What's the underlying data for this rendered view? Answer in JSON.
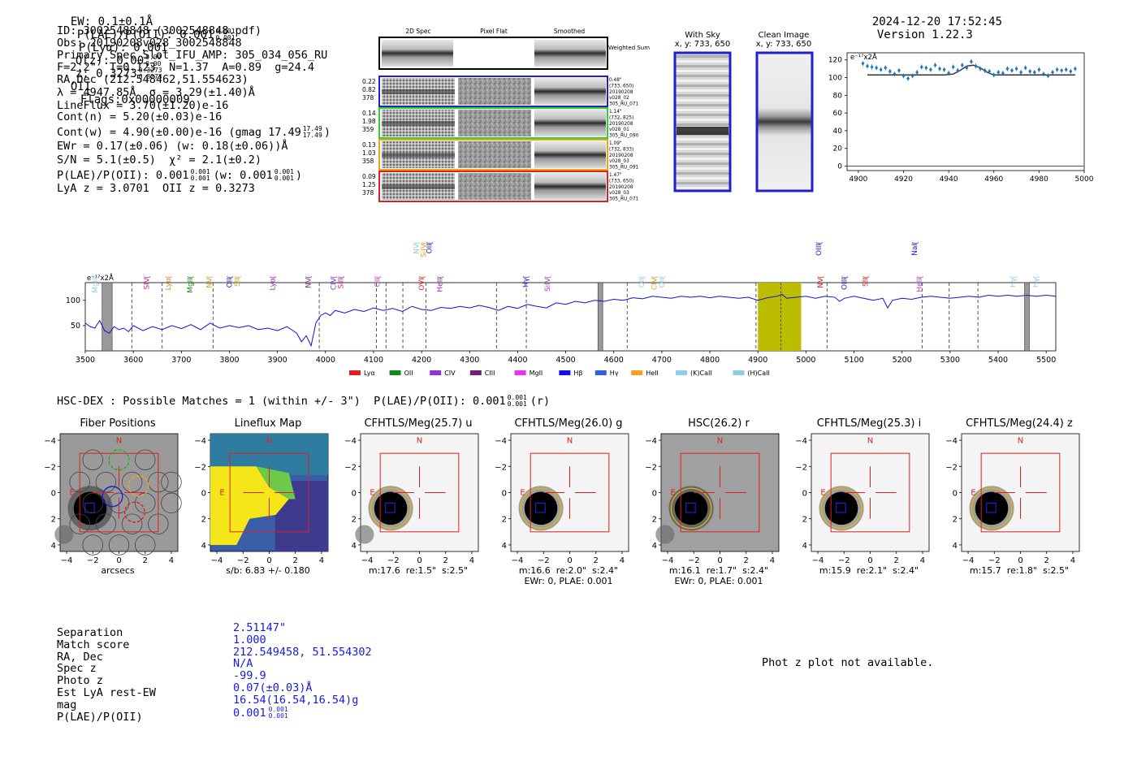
{
  "header": {
    "ew": "EW: 0.1±0.1Å",
    "plae_main": "P(LAE)/P(OII): 0.001",
    "plae_sup": "0.001",
    "plae_sub": "0.001",
    "plya": "P(Lyα): 0.001",
    "qz_main": "Q(z): 0.00",
    "qz_sup": "0.00",
    "qz_sub": "0.00",
    "z_main": "z: 0.3273",
    "z_sup": "0.3273",
    "z_sub": "0.3273",
    "z_line": "OII",
    "flags": "Flags:0x00000009",
    "datetime": "2024-12-20 17:52:45",
    "version": "Version 1.22.3"
  },
  "info": {
    "id": "ID: 3002548848 (3002548848.pdf)",
    "obs": "Obs: 20190208v028_3002548848",
    "primary": "Primary Spec_Slot_IFU_AMP: 305_034_056_RU",
    "fit": "F=2.2\"  T=0.123  N=1.37  A=0.89  g=24.4",
    "radec": "RA,Dec (212.548462,51.554623)",
    "lambda": "λ = 4947.85Å  σ = 3.29(±1.40)Å",
    "lineflux": "LineFlux = 3.70(±1.20)e-16",
    "contn": "Cont(n) = 5.20(±0.03)e-16",
    "contw_main": "Cont(w) = 4.90(±0.00)e-16 (gmag 17.49",
    "contw_sup": "17.49",
    "contw_sub": "17.49",
    "contw_close": ")",
    "ewr": "EWr = 0.17(±0.06) (w: 0.18(±0.06))Å",
    "sn": "S/N = 5.1(±0.5)  χ² = 2.1(±0.2)",
    "plae_main": "P(LAE)/P(OII): 0.001",
    "plae_sup": "0.001",
    "plae_sub": "0.001",
    "plae_w_main": "(w: 0.001",
    "plae_w_sup": "0.001",
    "plae_w_sub": "0.001",
    "plae_w_close": ")",
    "lya_oii": "LyA z = 3.0701  OII z = 0.3273"
  },
  "cutouts": {
    "col_titles": [
      "2D Spec",
      "Pixel Flat",
      "Smoothed"
    ],
    "weighted_sum_label": "Weighted Sum",
    "fibers": [
      {
        "left": [
          "0.22",
          "0.82",
          "378"
        ],
        "right": [
          "0.48\"",
          "(733, 650)",
          "20190208",
          "v028_02",
          "305_RU_071"
        ],
        "color": "#1f1fd0"
      },
      {
        "left": [
          "0.14",
          "1.98",
          "359"
        ],
        "right": [
          "1.14\"",
          "(732, 825)",
          "20190208",
          "v028_01",
          "305_RU_090"
        ],
        "color": "#2ad42a"
      },
      {
        "left": [
          "0.13",
          "1.03",
          "358"
        ],
        "right": [
          "1.09\"",
          "(732, 833)",
          "20190208",
          "v028_03",
          "305_RU_091"
        ],
        "color": "#f5a21b"
      },
      {
        "left": [
          "0.09",
          "1.25",
          "378"
        ],
        "right": [
          "1.47\"",
          "(733, 650)",
          "20190208",
          "v028_03",
          "305_RU_071"
        ],
        "color": "#e02020"
      }
    ],
    "with_sky_title": "With Sky",
    "with_sky_xy": "x, y: 733, 650",
    "clean_title": "Clean Image",
    "clean_xy": "x, y: 733, 650"
  },
  "zoom_chart": {
    "type": "line",
    "yunit": "e⁻¹⁷x2Å",
    "xlim": [
      4895,
      5000
    ],
    "ylim": [
      -5,
      128
    ],
    "xticks": [
      4900,
      4920,
      4940,
      4960,
      4980,
      5000
    ],
    "yticks": [
      0,
      20,
      40,
      60,
      80,
      100,
      120
    ],
    "data_x": [
      4902,
      4904,
      4906,
      4908,
      4910,
      4912,
      4914,
      4916,
      4918,
      4920,
      4922,
      4924,
      4926,
      4928,
      4930,
      4932,
      4934,
      4936,
      4938,
      4940,
      4942,
      4944,
      4946,
      4948,
      4950,
      4952,
      4954,
      4956,
      4958,
      4960,
      4962,
      4964,
      4966,
      4968,
      4970,
      4972,
      4974,
      4976,
      4978,
      4980,
      4982,
      4984,
      4986,
      4988,
      4990,
      4992,
      4994,
      4996
    ],
    "data_y": [
      116,
      113,
      112,
      111,
      109,
      111,
      107,
      104,
      108,
      102,
      99,
      102,
      106,
      112,
      111,
      109,
      114,
      110,
      109,
      105,
      112,
      108,
      114,
      111,
      118,
      113,
      110,
      108,
      107,
      103,
      106,
      105,
      110,
      108,
      110,
      106,
      111,
      107,
      106,
      109,
      104,
      102,
      106,
      109,
      108,
      109,
      107,
      110
    ],
    "model_x": [
      4904,
      4920,
      4930,
      4938,
      4942,
      4945,
      4948,
      4951,
      4954,
      4957,
      4960,
      4970,
      4996
    ],
    "model_y": [
      103,
      103,
      103,
      103,
      104,
      108,
      113,
      114,
      111,
      106,
      103,
      103,
      103
    ]
  },
  "spectrum": {
    "type": "line",
    "yunit": "e⁻¹⁷x2Å",
    "xlim": [
      3500,
      5520
    ],
    "ylim": [
      0,
      135
    ],
    "xticks": [
      3500,
      3600,
      3700,
      3800,
      3900,
      4000,
      4100,
      4200,
      4300,
      4400,
      4500,
      4600,
      4700,
      4800,
      4900,
      5000,
      5100,
      5200,
      5300,
      5400,
      5500
    ],
    "yticks": [
      50,
      100
    ],
    "highlight": [
      4900,
      4990
    ],
    "highlight_center": 4948,
    "sky_bands": [
      [
        3535,
        3556
      ],
      [
        4567,
        4577
      ],
      [
        5455,
        5465
      ]
    ],
    "dashed_lines": [
      3597,
      3660,
      3766,
      3987,
      4106,
      4126,
      4161,
      4209,
      4356,
      4418,
      4628,
      4896,
      5044,
      5242,
      5298,
      5358
    ],
    "line_labels": [
      {
        "x": 3520,
        "label": "MgII",
        "color": "#8ecde8",
        "row": 1
      },
      {
        "x": 3628,
        "label": "SIV",
        "color": "#c22a8a",
        "row": 1
      },
      {
        "x": 3672,
        "label": "Lyα",
        "color": "#e08b20",
        "row": 1
      },
      {
        "x": 3718,
        "label": "MgII",
        "color": "#168a16",
        "row": 1
      },
      {
        "x": 3758,
        "label": "NV",
        "color": "#e0a020",
        "row": 1
      },
      {
        "x": 3800,
        "label": "OII",
        "color": "#1f1fd0",
        "row": 1
      },
      {
        "x": 3816,
        "label": "SII",
        "color": "#e0a020",
        "row": 1
      },
      {
        "x": 3890,
        "label": "Lyα",
        "color": "#a028c8",
        "row": 1
      },
      {
        "x": 3964,
        "label": "NV",
        "color": "#8a2aa0",
        "row": 1
      },
      {
        "x": 4016,
        "label": "CIV",
        "color": "#9030c0",
        "row": 1
      },
      {
        "x": 4032,
        "label": "SiII",
        "color": "#c22a8a",
        "row": 1
      },
      {
        "x": 4108,
        "label": "CII",
        "color": "#e038c8",
        "row": 1
      },
      {
        "x": 4200,
        "label": "OVI",
        "color": "#e02020",
        "row": 1
      },
      {
        "x": 4238,
        "label": "HeII",
        "color": "#8a2aa0",
        "row": 1
      },
      {
        "x": 4416,
        "label": "Hγ",
        "color": "#1f1fd0",
        "row": 1
      },
      {
        "x": 4462,
        "label": "SiIV",
        "color": "#b040d0",
        "row": 1
      },
      {
        "x": 4658,
        "label": "OII",
        "color": "#8ecde8",
        "row": 1
      },
      {
        "x": 4684,
        "label": "CIV",
        "color": "#e0a020",
        "row": 1
      },
      {
        "x": 4700,
        "label": "OII",
        "color": "#8ecde8",
        "row": 1
      },
      {
        "x": 5030,
        "label": "NV",
        "color": "#e02020",
        "row": 1
      },
      {
        "x": 5080,
        "label": "OIII",
        "color": "#1f1fd0",
        "row": 1
      },
      {
        "x": 5124,
        "label": "SII",
        "color": "#e02020",
        "row": 1
      },
      {
        "x": 5236,
        "label": "HeII",
        "color": "#b040d0",
        "row": 1
      },
      {
        "x": 5430,
        "label": "Hγ",
        "color": "#8ecde8",
        "row": 1
      },
      {
        "x": 5478,
        "label": "Hγ",
        "color": "#8ecde8",
        "row": 1
      },
      {
        "x": 4189,
        "label": "NV",
        "color": "#8ecde8",
        "row": 2
      },
      {
        "x": 4204,
        "label": "SiIV",
        "color": "#e0a020",
        "row": 2
      },
      {
        "x": 4216,
        "label": "OII",
        "color": "#1f1fd0",
        "row": 2
      },
      {
        "x": 5026,
        "label": "OIII",
        "color": "#1f1fd0",
        "row": 2
      },
      {
        "x": 5226,
        "label": "NaI",
        "color": "#1f1fd0",
        "row": 2
      }
    ],
    "legend": [
      {
        "label": "Lyα",
        "color": "#e02020"
      },
      {
        "label": "OII",
        "color": "#168a16"
      },
      {
        "label": "CIV",
        "color": "#9030e0"
      },
      {
        "label": "CIII",
        "color": "#7a1a7a"
      },
      {
        "label": "MgII",
        "color": "#f030f0"
      },
      {
        "label": "Hβ",
        "color": "#1010e0"
      },
      {
        "label": "Hγ",
        "color": "#3060e0"
      },
      {
        "label": "HeII",
        "color": "#f5a020"
      },
      {
        "label": "(K)CaII",
        "color": "#8ecde8"
      },
      {
        "label": "(H)CaII",
        "color": "#8ecde8"
      }
    ],
    "keypoints": [
      [
        3500,
        55
      ],
      [
        3510,
        48
      ],
      [
        3520,
        45
      ],
      [
        3530,
        60
      ],
      [
        3540,
        40
      ],
      [
        3550,
        35
      ],
      [
        3560,
        48
      ],
      [
        3570,
        42
      ],
      [
        3580,
        45
      ],
      [
        3590,
        38
      ],
      [
        3600,
        50
      ],
      [
        3620,
        40
      ],
      [
        3640,
        48
      ],
      [
        3660,
        42
      ],
      [
        3680,
        50
      ],
      [
        3700,
        44
      ],
      [
        3720,
        52
      ],
      [
        3740,
        42
      ],
      [
        3760,
        55
      ],
      [
        3780,
        45
      ],
      [
        3800,
        50
      ],
      [
        3820,
        46
      ],
      [
        3840,
        50
      ],
      [
        3860,
        42
      ],
      [
        3880,
        45
      ],
      [
        3900,
        40
      ],
      [
        3920,
        48
      ],
      [
        3940,
        35
      ],
      [
        3950,
        18
      ],
      [
        3960,
        30
      ],
      [
        3970,
        10
      ],
      [
        3980,
        55
      ],
      [
        3990,
        70
      ],
      [
        4000,
        75
      ],
      [
        4010,
        70
      ],
      [
        4020,
        80
      ],
      [
        4040,
        75
      ],
      [
        4060,
        82
      ],
      [
        4080,
        78
      ],
      [
        4100,
        85
      ],
      [
        4120,
        80
      ],
      [
        4140,
        84
      ],
      [
        4160,
        78
      ],
      [
        4180,
        88
      ],
      [
        4200,
        82
      ],
      [
        4220,
        80
      ],
      [
        4240,
        86
      ],
      [
        4260,
        84
      ],
      [
        4280,
        88
      ],
      [
        4300,
        85
      ],
      [
        4320,
        90
      ],
      [
        4340,
        86
      ],
      [
        4360,
        80
      ],
      [
        4380,
        88
      ],
      [
        4400,
        84
      ],
      [
        4420,
        92
      ],
      [
        4440,
        88
      ],
      [
        4460,
        85
      ],
      [
        4480,
        95
      ],
      [
        4500,
        92
      ],
      [
        4520,
        98
      ],
      [
        4540,
        95
      ],
      [
        4560,
        100
      ],
      [
        4580,
        98
      ],
      [
        4600,
        102
      ],
      [
        4620,
        100
      ],
      [
        4640,
        105
      ],
      [
        4660,
        103
      ],
      [
        4680,
        108
      ],
      [
        4700,
        106
      ],
      [
        4720,
        104
      ],
      [
        4740,
        108
      ],
      [
        4760,
        106
      ],
      [
        4780,
        108
      ],
      [
        4800,
        105
      ],
      [
        4820,
        108
      ],
      [
        4840,
        106
      ],
      [
        4860,
        104
      ],
      [
        4880,
        106
      ],
      [
        4900,
        100
      ],
      [
        4920,
        105
      ],
      [
        4940,
        108
      ],
      [
        4950,
        112
      ],
      [
        4960,
        104
      ],
      [
        4980,
        106
      ],
      [
        5000,
        108
      ],
      [
        5020,
        104
      ],
      [
        5040,
        108
      ],
      [
        5060,
        106
      ],
      [
        5070,
        98
      ],
      [
        5080,
        104
      ],
      [
        5100,
        108
      ],
      [
        5120,
        104
      ],
      [
        5140,
        100
      ],
      [
        5160,
        104
      ],
      [
        5170,
        85
      ],
      [
        5180,
        100
      ],
      [
        5200,
        104
      ],
      [
        5220,
        102
      ],
      [
        5240,
        106
      ],
      [
        5260,
        108
      ],
      [
        5280,
        106
      ],
      [
        5300,
        104
      ],
      [
        5320,
        106
      ],
      [
        5340,
        108
      ],
      [
        5360,
        106
      ],
      [
        5380,
        110
      ],
      [
        5400,
        108
      ],
      [
        5420,
        110
      ],
      [
        5440,
        108
      ],
      [
        5460,
        110
      ],
      [
        5480,
        108
      ],
      [
        5500,
        110
      ],
      [
        5520,
        108
      ]
    ]
  },
  "dex_match": {
    "title_main": "HSC-DEX : Possible Matches = 1 (within +/- 3\")  P(LAE)/P(OII): 0.001",
    "title_sup": "0.001",
    "title_sub": "0.001",
    "title_band": "(r)"
  },
  "stamps": [
    {
      "title": "Fiber Positions",
      "caption1": "arcsecs",
      "caption2": "",
      "kind": "fiber"
    },
    {
      "title": "Lineflux Map",
      "caption1": "s/b: 6.83 +/- 0.180",
      "caption2": "",
      "kind": "flux"
    },
    {
      "title": "CFHTLS/Meg(25.7) u",
      "caption1": "m:17.6  re:1.5\"  s:2.5\"",
      "caption2": "",
      "kind": "u"
    },
    {
      "title": "CFHTLS/Meg(26.0) g",
      "caption1": "m:16.6  re:2.0\"  s:2.4\"",
      "caption2": "EWr: 0, PLAE: 0.001",
      "kind": "g"
    },
    {
      "title": "HSC(26.2) r",
      "caption1": "m:16.1  re:1.7\"  s:2.4\"",
      "caption2": "EWr: 0, PLAE: 0.001",
      "kind": "r"
    },
    {
      "title": "CFHTLS/Meg(25.3) i",
      "caption1": "m:15.9  re:2.1\"  s:2.4\"",
      "caption2": "",
      "kind": "i"
    },
    {
      "title": "CFHTLS/Meg(24.4) z",
      "caption1": "m:15.7  re:1.8\"  s:2.5\"",
      "caption2": "",
      "kind": "z"
    }
  ],
  "stamp_axes": {
    "ticks": [
      "−4",
      "−2",
      "0",
      "2",
      "4"
    ],
    "n_label": "N",
    "e_label": "E"
  },
  "match_table": {
    "labels": [
      "Separation",
      "Match score",
      "RA, Dec",
      "Spec z",
      "Photo z",
      "Est LyA rest-EW",
      "mag",
      "P(LAE)/P(OII)"
    ],
    "values": [
      "2.51147\"",
      "1.000",
      "212.549458, 51.554302",
      "N/A",
      "-99.9",
      "0.07(±0.03)Å",
      "16.54(16.54,16.54)g",
      "0.001"
    ],
    "plae_sup": "0.001",
    "plae_sub": "0.001"
  },
  "photz_message": "Phot z plot not available."
}
